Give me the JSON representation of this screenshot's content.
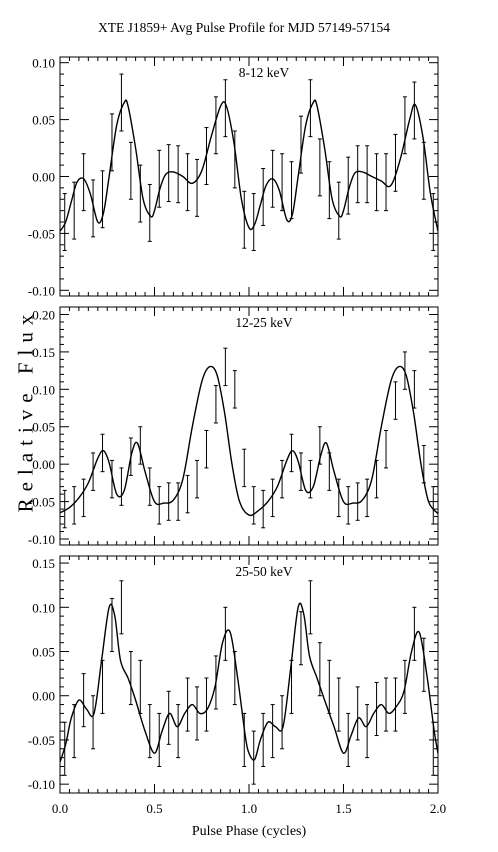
{
  "title": "XTE J1859+ Avg Pulse Profile for MJD 57149-57154",
  "ylabel": "Relative Flux",
  "xlabel": "Pulse Phase (cycles)",
  "chart_data": [
    {
      "type": "line",
      "panel_label": "8-12 keV",
      "xlim": [
        0,
        2.0
      ],
      "ylim": [
        -0.105,
        0.105
      ],
      "x_ticks": [
        "0.0",
        "0.5",
        "1.0",
        "1.5",
        "2.0"
      ],
      "y_ticks": [
        "0.10",
        "0.05",
        "0.00",
        "-0.05",
        "-0.10"
      ],
      "y_tick_values": [
        0.1,
        0.05,
        0.0,
        -0.05,
        -0.1
      ],
      "points": {
        "x": [
          0.025,
          0.075,
          0.125,
          0.175,
          0.225,
          0.275,
          0.325,
          0.375,
          0.425,
          0.475,
          0.525,
          0.575,
          0.625,
          0.675,
          0.725,
          0.775,
          0.825,
          0.875,
          0.925,
          0.975,
          1.025,
          1.075,
          1.125,
          1.175,
          1.225,
          1.275,
          1.325,
          1.375,
          1.425,
          1.475,
          1.525,
          1.575,
          1.625,
          1.675,
          1.725,
          1.775,
          1.825,
          1.875,
          1.925,
          1.975
        ],
        "y": [
          -0.04,
          -0.03,
          -0.005,
          -0.028,
          -0.02,
          0.03,
          0.065,
          0.005,
          -0.015,
          -0.032,
          -0.002,
          0.003,
          0.002,
          -0.005,
          -0.01,
          0.018,
          0.045,
          0.06,
          0.015,
          -0.038,
          -0.04,
          -0.018,
          -0.002,
          -0.005,
          -0.012,
          0.028,
          0.06,
          0.008,
          -0.012,
          -0.03,
          -0.008,
          0.002,
          0.002,
          -0.005,
          -0.005,
          0.012,
          0.045,
          0.058,
          0.005,
          -0.04
        ],
        "err": [
          0.025,
          0.025,
          0.025,
          0.025,
          0.025,
          0.025,
          0.025,
          0.025,
          0.025,
          0.025,
          0.025,
          0.025,
          0.025,
          0.025,
          0.025,
          0.025,
          0.025,
          0.025,
          0.025,
          0.025,
          0.025,
          0.025,
          0.025,
          0.025,
          0.025,
          0.025,
          0.025,
          0.025,
          0.025,
          0.025,
          0.025,
          0.025,
          0.025,
          0.025,
          0.025,
          0.025,
          0.025,
          0.025,
          0.025,
          0.025
        ]
      },
      "curve": {
        "x": [
          0.0,
          0.03,
          0.06,
          0.09,
          0.125,
          0.16,
          0.2,
          0.23,
          0.26,
          0.3,
          0.34,
          0.36,
          0.4,
          0.44,
          0.48,
          0.5,
          0.53,
          0.56,
          0.6,
          0.65,
          0.7,
          0.75,
          0.8,
          0.85,
          0.88,
          0.92,
          0.96,
          1.0,
          1.03,
          1.06,
          1.09,
          1.125,
          1.16,
          1.2,
          1.23,
          1.26,
          1.3,
          1.34,
          1.36,
          1.4,
          1.44,
          1.48,
          1.5,
          1.53,
          1.56,
          1.6,
          1.65,
          1.7,
          1.75,
          1.8,
          1.85,
          1.88,
          1.92,
          1.96,
          2.0
        ],
        "y": [
          -0.048,
          -0.04,
          -0.022,
          -0.005,
          -0.002,
          -0.015,
          -0.04,
          -0.032,
          0.0,
          0.045,
          0.065,
          0.062,
          0.025,
          -0.02,
          -0.035,
          -0.03,
          -0.01,
          0.002,
          0.004,
          0.0,
          -0.006,
          0.005,
          0.035,
          0.062,
          0.062,
          0.03,
          -0.02,
          -0.045,
          -0.042,
          -0.025,
          -0.008,
          -0.002,
          -0.012,
          -0.038,
          -0.033,
          0.0,
          0.045,
          0.065,
          0.062,
          0.025,
          -0.02,
          -0.035,
          -0.03,
          -0.01,
          0.003,
          0.004,
          0.0,
          -0.004,
          -0.008,
          0.015,
          0.05,
          0.063,
          0.035,
          -0.015,
          -0.048
        ]
      }
    },
    {
      "type": "line",
      "panel_label": "12-25 keV",
      "xlim": [
        0,
        2.0
      ],
      "ylim": [
        -0.108,
        0.21
      ],
      "x_ticks": [
        "0.0",
        "0.5",
        "1.0",
        "1.5",
        "2.0"
      ],
      "y_ticks": [
        "0.20",
        "0.15",
        "0.10",
        "0.05",
        "0.00",
        "-0.05",
        "-0.10"
      ],
      "y_tick_values": [
        0.2,
        0.15,
        0.1,
        0.05,
        0.0,
        -0.05,
        -0.1
      ],
      "points": {
        "x": [
          0.025,
          0.075,
          0.125,
          0.175,
          0.225,
          0.275,
          0.325,
          0.375,
          0.425,
          0.475,
          0.525,
          0.575,
          0.625,
          0.675,
          0.725,
          0.775,
          0.825,
          0.875,
          0.925,
          0.975,
          1.025,
          1.075,
          1.125,
          1.175,
          1.225,
          1.275,
          1.325,
          1.375,
          1.425,
          1.475,
          1.525,
          1.575,
          1.625,
          1.675,
          1.725,
          1.775,
          1.825,
          1.875,
          1.925,
          1.975
        ],
        "y": [
          -0.06,
          -0.055,
          -0.045,
          -0.01,
          0.015,
          -0.02,
          -0.03,
          0.01,
          0.025,
          -0.03,
          -0.055,
          -0.05,
          -0.05,
          -0.04,
          -0.02,
          0.02,
          0.08,
          0.13,
          0.1,
          -0.005,
          -0.055,
          -0.06,
          -0.045,
          -0.02,
          0.015,
          -0.01,
          -0.02,
          0.025,
          -0.01,
          -0.045,
          -0.055,
          -0.05,
          -0.045,
          -0.02,
          0.02,
          0.085,
          0.125,
          0.1,
          0.0,
          -0.055
        ],
        "err": [
          0.025,
          0.025,
          0.025,
          0.025,
          0.025,
          0.025,
          0.025,
          0.025,
          0.025,
          0.025,
          0.025,
          0.025,
          0.025,
          0.025,
          0.025,
          0.025,
          0.025,
          0.025,
          0.025,
          0.025,
          0.025,
          0.025,
          0.025,
          0.025,
          0.025,
          0.025,
          0.025,
          0.025,
          0.025,
          0.025,
          0.025,
          0.025,
          0.025,
          0.025,
          0.025,
          0.025,
          0.025,
          0.025,
          0.025,
          0.025
        ]
      },
      "curve": {
        "x": [
          0.0,
          0.05,
          0.1,
          0.15,
          0.2,
          0.23,
          0.26,
          0.3,
          0.34,
          0.38,
          0.41,
          0.45,
          0.5,
          0.55,
          0.6,
          0.65,
          0.7,
          0.75,
          0.79,
          0.83,
          0.87,
          0.91,
          0.95,
          1.0,
          1.05,
          1.1,
          1.15,
          1.2,
          1.23,
          1.26,
          1.3,
          1.34,
          1.38,
          1.41,
          1.45,
          1.5,
          1.55,
          1.6,
          1.65,
          1.7,
          1.75,
          1.79,
          1.83,
          1.87,
          1.91,
          1.95,
          2.0
        ],
        "y": [
          -0.065,
          -0.058,
          -0.045,
          -0.025,
          0.008,
          0.018,
          0.002,
          -0.04,
          -0.035,
          0.015,
          0.028,
          -0.01,
          -0.05,
          -0.052,
          -0.048,
          -0.02,
          0.05,
          0.11,
          0.13,
          0.12,
          0.07,
          0.0,
          -0.05,
          -0.068,
          -0.062,
          -0.05,
          -0.03,
          0.005,
          0.018,
          0.004,
          -0.035,
          -0.03,
          0.012,
          0.028,
          -0.01,
          -0.05,
          -0.052,
          -0.048,
          -0.02,
          0.05,
          0.11,
          0.13,
          0.12,
          0.07,
          0.0,
          -0.05,
          -0.066
        ]
      }
    },
    {
      "type": "line",
      "panel_label": "25-50 keV",
      "xlim": [
        0,
        2.0
      ],
      "ylim": [
        -0.11,
        0.158
      ],
      "x_ticks": [
        "0.0",
        "0.5",
        "1.0",
        "1.5",
        "2.0"
      ],
      "y_ticks": [
        "0.15",
        "0.10",
        "0.05",
        "0.00",
        "-0.05",
        "-0.10"
      ],
      "y_tick_values": [
        0.15,
        0.1,
        0.05,
        0.0,
        -0.05,
        -0.1
      ],
      "points": {
        "x": [
          0.025,
          0.075,
          0.125,
          0.175,
          0.225,
          0.275,
          0.325,
          0.375,
          0.425,
          0.475,
          0.525,
          0.575,
          0.625,
          0.675,
          0.725,
          0.775,
          0.825,
          0.875,
          0.925,
          0.975,
          1.025,
          1.075,
          1.125,
          1.175,
          1.225,
          1.275,
          1.325,
          1.375,
          1.425,
          1.475,
          1.525,
          1.575,
          1.625,
          1.675,
          1.725,
          1.775,
          1.825,
          1.875,
          1.925,
          1.975
        ],
        "y": [
          -0.06,
          -0.04,
          -0.005,
          -0.03,
          0.01,
          0.08,
          0.1,
          0.02,
          0.01,
          -0.04,
          -0.05,
          -0.025,
          -0.04,
          -0.01,
          -0.02,
          -0.01,
          0.015,
          0.07,
          0.02,
          -0.05,
          -0.07,
          -0.05,
          -0.04,
          -0.03,
          0.01,
          0.065,
          0.1,
          0.03,
          0.01,
          -0.01,
          -0.05,
          -0.02,
          -0.04,
          -0.015,
          -0.01,
          -0.01,
          0.01,
          0.07,
          0.035,
          -0.06
        ],
        "err": [
          0.03,
          0.03,
          0.03,
          0.03,
          0.03,
          0.03,
          0.03,
          0.03,
          0.03,
          0.03,
          0.03,
          0.03,
          0.03,
          0.03,
          0.03,
          0.03,
          0.03,
          0.03,
          0.03,
          0.03,
          0.03,
          0.03,
          0.03,
          0.03,
          0.03,
          0.03,
          0.03,
          0.03,
          0.03,
          0.03,
          0.03,
          0.03,
          0.03,
          0.03,
          0.03,
          0.03,
          0.03,
          0.03,
          0.03,
          0.03
        ]
      },
      "curve": {
        "x": [
          0.0,
          0.03,
          0.06,
          0.1,
          0.14,
          0.18,
          0.22,
          0.26,
          0.29,
          0.32,
          0.36,
          0.4,
          0.45,
          0.5,
          0.54,
          0.58,
          0.62,
          0.66,
          0.7,
          0.74,
          0.78,
          0.82,
          0.86,
          0.9,
          0.94,
          0.98,
          1.0,
          1.03,
          1.06,
          1.1,
          1.14,
          1.18,
          1.22,
          1.26,
          1.29,
          1.32,
          1.36,
          1.4,
          1.45,
          1.5,
          1.54,
          1.58,
          1.62,
          1.66,
          1.7,
          1.74,
          1.78,
          1.82,
          1.86,
          1.9,
          1.94,
          1.98,
          2.0
        ],
        "y": [
          -0.075,
          -0.055,
          -0.025,
          -0.005,
          -0.015,
          -0.02,
          0.04,
          0.1,
          0.09,
          0.04,
          0.02,
          -0.005,
          -0.04,
          -0.065,
          -0.04,
          -0.02,
          -0.035,
          -0.02,
          -0.01,
          -0.02,
          -0.015,
          0.01,
          0.06,
          0.072,
          0.02,
          -0.045,
          -0.065,
          -0.072,
          -0.05,
          -0.03,
          -0.035,
          -0.035,
          0.03,
          0.1,
          0.092,
          0.045,
          0.02,
          -0.005,
          -0.035,
          -0.065,
          -0.045,
          -0.025,
          -0.035,
          -0.02,
          -0.01,
          -0.02,
          -0.012,
          0.005,
          0.05,
          0.072,
          0.025,
          -0.04,
          -0.065
        ]
      }
    }
  ]
}
